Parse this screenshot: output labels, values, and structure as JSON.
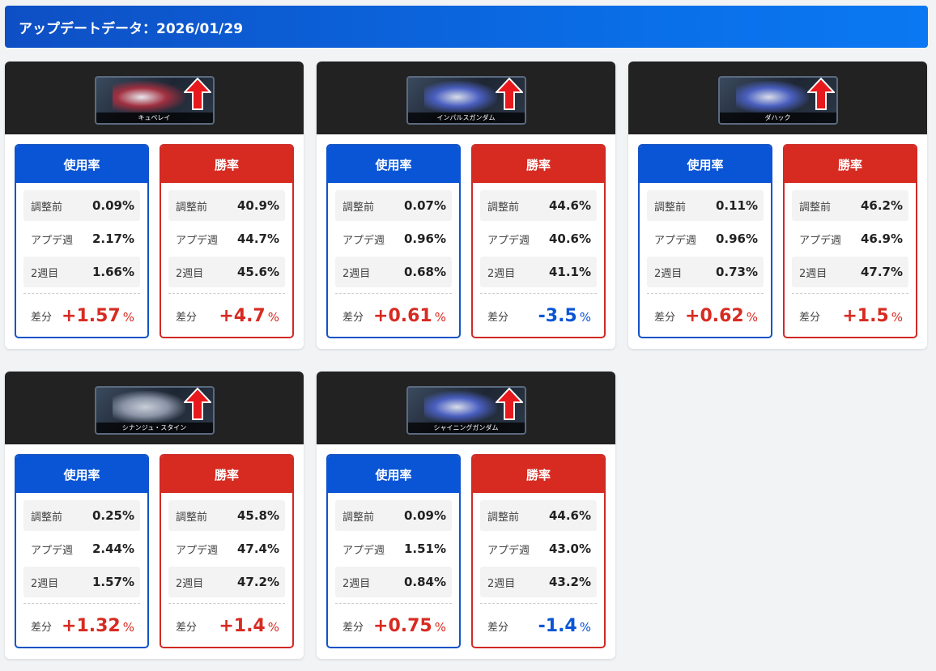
{
  "header": {
    "title": "アップデートデータ：2026/01/29"
  },
  "labels": {
    "usage": "使用率",
    "win": "勝率",
    "before": "調整前",
    "update_week": "アプデ週",
    "week2": "2週目",
    "diff": "差分",
    "pct": "%"
  },
  "colors": {
    "blue": "#0a55d6",
    "red": "#d72b22",
    "banner": "#222222"
  },
  "cards": [
    {
      "name": "キュベレイ",
      "icon": "up-arrow-icon",
      "usage": {
        "before": "0.09%",
        "update_week": "2.17%",
        "week2": "1.66%",
        "diff": "+1.57",
        "sign": "pos"
      },
      "win": {
        "before": "40.9%",
        "update_week": "44.7%",
        "week2": "45.6%",
        "diff": "+4.7",
        "sign": "pos"
      }
    },
    {
      "name": "インパルスガンダム",
      "icon": "up-arrow-icon",
      "usage": {
        "before": "0.07%",
        "update_week": "0.96%",
        "week2": "0.68%",
        "diff": "+0.61",
        "sign": "pos"
      },
      "win": {
        "before": "44.6%",
        "update_week": "40.6%",
        "week2": "41.1%",
        "diff": "-3.5",
        "sign": "neg"
      }
    },
    {
      "name": "ダハック",
      "icon": "up-arrow-icon",
      "usage": {
        "before": "0.11%",
        "update_week": "0.96%",
        "week2": "0.73%",
        "diff": "+0.62",
        "sign": "pos"
      },
      "win": {
        "before": "46.2%",
        "update_week": "46.9%",
        "week2": "47.7%",
        "diff": "+1.5",
        "sign": "pos"
      }
    },
    {
      "name": "シナンジュ・スタイン",
      "icon": "up-arrow-icon",
      "usage": {
        "before": "0.25%",
        "update_week": "2.44%",
        "week2": "1.57%",
        "diff": "+1.32",
        "sign": "pos"
      },
      "win": {
        "before": "45.8%",
        "update_week": "47.4%",
        "week2": "47.2%",
        "diff": "+1.4",
        "sign": "pos"
      }
    },
    {
      "name": "シャイニングガンダム",
      "icon": "up-arrow-icon",
      "usage": {
        "before": "0.09%",
        "update_week": "1.51%",
        "week2": "0.84%",
        "diff": "+0.75",
        "sign": "pos"
      },
      "win": {
        "before": "44.6%",
        "update_week": "43.0%",
        "week2": "43.2%",
        "diff": "-1.4",
        "sign": "neg"
      }
    }
  ]
}
